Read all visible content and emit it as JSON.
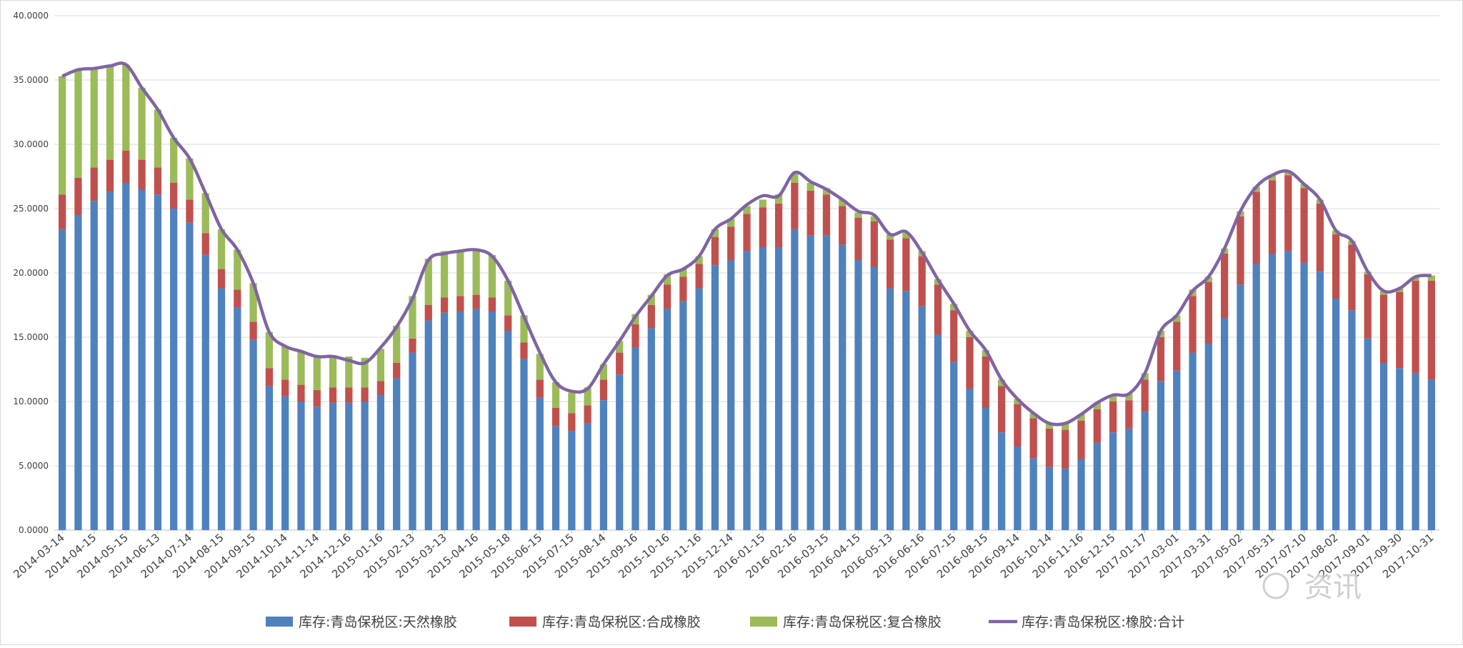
{
  "chart_data": {
    "type": "bar",
    "stacked": true,
    "title": "",
    "xlabel": "",
    "ylabel": "",
    "ylim": [
      0,
      40
    ],
    "yticks": [
      "0.0000",
      "5.0000",
      "10.0000",
      "15.0000",
      "20.0000",
      "25.0000",
      "30.0000",
      "35.0000",
      "40.0000"
    ],
    "grid": true,
    "legend_position": "bottom",
    "x_tick_labels": [
      "2014-03-14",
      "2014-04-15",
      "2014-05-15",
      "2014-06-13",
      "2014-07-14",
      "2014-08-15",
      "2014-09-15",
      "2014-10-14",
      "2014-11-14",
      "2014-12-16",
      "2015-01-16",
      "2015-02-13",
      "2015-03-13",
      "2015-04-16",
      "2015-05-18",
      "2015-06-15",
      "2015-07-15",
      "2015-08-14",
      "2015-09-16",
      "2015-10-16",
      "2015-11-16",
      "2015-12-14",
      "2016-01-15",
      "2016-02-16",
      "2016-03-15",
      "2016-04-15",
      "2016-05-13",
      "2016-06-16",
      "2016-07-15",
      "2016-08-15",
      "2016-09-14",
      "2016-10-14",
      "2016-11-16",
      "2016-12-15",
      "2017-01-17",
      "2017-03-01",
      "2017-03-31",
      "2017-05-02",
      "2017-05-31",
      "2017-07-10",
      "2017-08-02",
      "2017-09-01",
      "2017-09-30",
      "2017-10-31"
    ],
    "series": [
      {
        "name": "库存:青岛保税区:天然橡胶",
        "color": "#4f81bd",
        "kind": "bar",
        "values": [
          23.4,
          24.5,
          25.6,
          26.3,
          27.0,
          26.5,
          26.1,
          25.0,
          23.9,
          21.4,
          18.8,
          17.3,
          14.8,
          11.2,
          10.4,
          10.0,
          9.6,
          9.9,
          9.9,
          10.0,
          10.5,
          11.8,
          13.8,
          16.3,
          16.9,
          17.0,
          17.2,
          17.0,
          15.5,
          13.3,
          10.3,
          8.1,
          7.7,
          8.3,
          10.1,
          12.1,
          14.2,
          15.7,
          17.2,
          17.8,
          18.8,
          20.6,
          21.0,
          21.7,
          22.0,
          22.0,
          23.4,
          22.9,
          22.9,
          22.2,
          21.0,
          20.5,
          18.8,
          18.6,
          17.4,
          15.2,
          13.1,
          11.0,
          9.5,
          7.6,
          6.5,
          5.6,
          4.9,
          4.8,
          5.5,
          6.8,
          7.6,
          7.9,
          9.2,
          11.6,
          12.4,
          13.8,
          14.5,
          16.5,
          19.1,
          20.7,
          21.5,
          21.7,
          20.8,
          20.1,
          18.0,
          17.1,
          14.9,
          13.0,
          12.6,
          12.2,
          11.7
        ]
      },
      {
        "name": "库存:青岛保税区:合成橡胶",
        "color": "#c0504d",
        "kind": "bar",
        "values": [
          2.7,
          2.9,
          2.6,
          2.5,
          2.5,
          2.3,
          2.1,
          2.0,
          1.8,
          1.7,
          1.5,
          1.4,
          1.4,
          1.4,
          1.3,
          1.3,
          1.3,
          1.2,
          1.2,
          1.1,
          1.1,
          1.2,
          1.1,
          1.2,
          1.2,
          1.2,
          1.1,
          1.1,
          1.2,
          1.3,
          1.4,
          1.4,
          1.4,
          1.4,
          1.6,
          1.7,
          1.8,
          1.8,
          1.9,
          1.9,
          1.9,
          2.2,
          2.6,
          2.9,
          3.1,
          3.4,
          3.6,
          3.5,
          3.2,
          3.0,
          3.3,
          3.5,
          3.8,
          4.1,
          3.9,
          3.9,
          4.0,
          4.0,
          4.0,
          3.6,
          3.3,
          3.1,
          3.0,
          3.0,
          3.0,
          2.6,
          2.4,
          2.2,
          2.5,
          3.4,
          3.8,
          4.4,
          4.8,
          5.0,
          5.3,
          5.6,
          5.7,
          5.9,
          5.8,
          5.3,
          5.0,
          5.1,
          5.0,
          5.3,
          5.9,
          7.2,
          7.7
        ]
      },
      {
        "name": "库存:青岛保税区:复合橡胶",
        "color": "#9bbb59",
        "kind": "bar",
        "values": [
          9.2,
          8.4,
          7.7,
          7.3,
          6.7,
          5.6,
          4.5,
          3.5,
          3.2,
          3.1,
          3.1,
          3.1,
          3.0,
          2.8,
          2.6,
          2.6,
          2.6,
          2.4,
          2.4,
          2.3,
          2.5,
          2.9,
          3.3,
          3.6,
          3.6,
          3.5,
          3.5,
          3.3,
          2.7,
          2.1,
          2.0,
          2.0,
          1.6,
          1.4,
          1.2,
          0.9,
          0.8,
          0.8,
          0.8,
          0.6,
          0.6,
          0.6,
          0.6,
          0.6,
          0.6,
          0.7,
          0.7,
          0.6,
          0.5,
          0.5,
          0.4,
          0.4,
          0.4,
          0.4,
          0.4,
          0.4,
          0.5,
          0.5,
          0.5,
          0.5,
          0.4,
          0.4,
          0.4,
          0.5,
          0.5,
          0.5,
          0.5,
          0.5,
          0.5,
          0.5,
          0.5,
          0.5,
          0.4,
          0.4,
          0.4,
          0.4,
          0.4,
          0.3,
          0.3,
          0.3,
          0.3,
          0.3,
          0.2,
          0.3,
          0.3,
          0.3,
          0.4
        ]
      },
      {
        "name": "库存:青岛保税区:橡胶:合计",
        "color": "#8064a2",
        "kind": "line",
        "values": [
          35.3,
          35.8,
          35.9,
          36.1,
          36.2,
          34.4,
          32.7,
          30.5,
          28.9,
          26.2,
          23.4,
          21.8,
          19.2,
          15.4,
          14.3,
          13.9,
          13.5,
          13.5,
          13.2,
          13.0,
          14.2,
          15.8,
          18.0,
          21.0,
          21.5,
          21.7,
          21.8,
          21.3,
          19.4,
          16.6,
          13.8,
          11.5,
          10.8,
          11.0,
          12.9,
          14.7,
          16.6,
          18.2,
          19.8,
          20.3,
          21.3,
          23.4,
          24.2,
          25.3,
          26.0,
          26.0,
          27.8,
          27.1,
          26.5,
          25.7,
          24.8,
          24.5,
          23.0,
          23.2,
          21.6,
          19.5,
          17.6,
          15.5,
          14.0,
          11.7,
          10.2,
          9.1,
          8.3,
          8.3,
          9.0,
          9.9,
          10.5,
          10.6,
          12.2,
          15.5,
          16.7,
          18.6,
          19.7,
          21.9,
          24.8,
          26.7,
          27.6,
          27.9,
          26.9,
          25.7,
          23.3,
          22.5,
          20.1,
          18.6,
          18.8,
          19.7,
          19.8
        ]
      }
    ]
  },
  "watermark": {
    "text": "资讯"
  }
}
